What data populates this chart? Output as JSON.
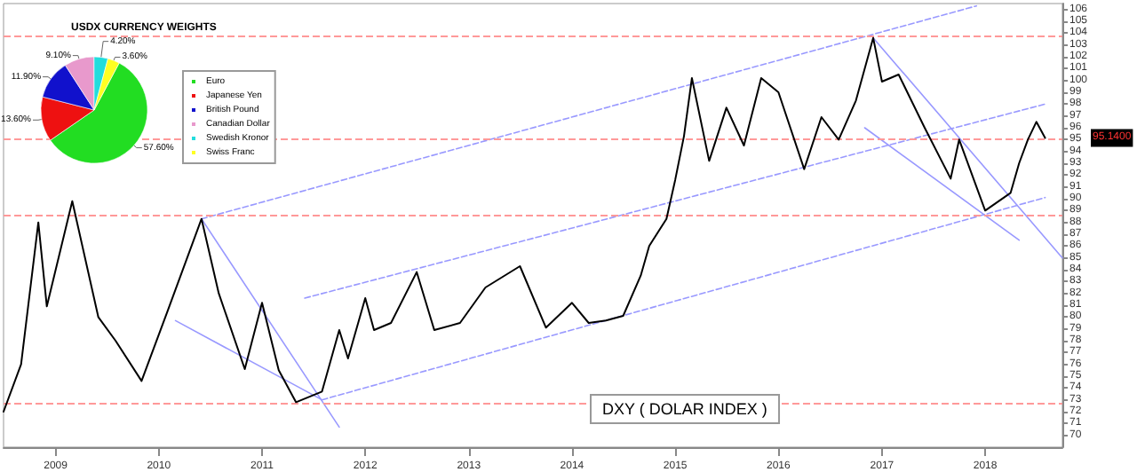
{
  "chart_data": [
    {
      "type": "pie",
      "title": "USDX CURRENCY WEIGHTS",
      "categories": [
        "Euro",
        "Japanese Yen",
        "British Pound",
        "Canadian Dollar",
        "Swedish Kronor",
        "Swiss Franc"
      ],
      "values": [
        57.6,
        13.6,
        11.9,
        9.1,
        4.2,
        3.6
      ],
      "colors": [
        "#22dd22",
        "#ee1111",
        "#1111cc",
        "#e899cc",
        "#22dddd",
        "#ffff22"
      ],
      "value_labels": [
        "57.60%",
        "13.60%",
        "11.90%",
        "9.10%",
        "4.20%",
        "3.60%"
      ],
      "legend": "right"
    },
    {
      "type": "line",
      "annotations": [
        "DXY ( DOLAR INDEX )",
        "95.1400"
      ],
      "xlim": [
        "2008-07",
        "2018-10"
      ],
      "xticks": [
        "2009",
        "2010",
        "2011",
        "2012",
        "2013",
        "2014",
        "2015",
        "2016",
        "2017",
        "2018"
      ],
      "ylim": [
        69,
        106.5
      ],
      "yticks": [
        70,
        71,
        72,
        73,
        74,
        75,
        76,
        77,
        78,
        79,
        80,
        81,
        82,
        83,
        84,
        85,
        86,
        87,
        88,
        89,
        90,
        91,
        92,
        93,
        94,
        95,
        96,
        97,
        98,
        99,
        100,
        101,
        102,
        103,
        104,
        105,
        106
      ],
      "marker": "none",
      "grid": false,
      "legend": false,
      "x": [
        "2008-07",
        "2008-09",
        "2008-11",
        "2008-12",
        "2009-03",
        "2009-06",
        "2009-08",
        "2009-11",
        "2010-02",
        "2010-06",
        "2010-08",
        "2010-11",
        "2011-01",
        "2011-03",
        "2011-05",
        "2011-08",
        "2011-10",
        "2011-11",
        "2012-01",
        "2012-02",
        "2012-04",
        "2012-07",
        "2012-09",
        "2012-12",
        "2013-03",
        "2013-07",
        "2013-10",
        "2014-01",
        "2014-03",
        "2014-05",
        "2014-07",
        "2014-09",
        "2014-10",
        "2014-12",
        "2015-01",
        "2015-02",
        "2015-03",
        "2015-05",
        "2015-07",
        "2015-09",
        "2015-11",
        "2016-01",
        "2016-04",
        "2016-06",
        "2016-08",
        "2016-10",
        "2016-12",
        "2017-01",
        "2017-03",
        "2017-06",
        "2017-09",
        "2017-10",
        "2018-01",
        "2018-04",
        "2018-05",
        "2018-06",
        "2018-07",
        "2018-08"
      ],
      "series": [
        {
          "color": "#000000",
          "line_style": "solid",
          "values": [
            72,
            76,
            88,
            80.9,
            89.8,
            80,
            78,
            74.6,
            80.5,
            88.3,
            82,
            75.6,
            81.2,
            75.5,
            72.8,
            73.7,
            78.9,
            76.5,
            81.6,
            78.9,
            79.5,
            83.8,
            78.9,
            79.5,
            82.5,
            84.3,
            79.1,
            81.2,
            79.5,
            79.7,
            80.1,
            83.5,
            86,
            88.3,
            91.6,
            95.3,
            100.2,
            93.2,
            97.7,
            94.5,
            100.2,
            99,
            92.5,
            96.9,
            95,
            98.3,
            103.6,
            99.9,
            100.5,
            96,
            91.7,
            95,
            89,
            90.5,
            93,
            95,
            96.5,
            95.14
          ]
        },
        {
          "color": "#9999ff",
          "line_style": "dashed",
          "x": [
            "2010-06",
            "2017-12"
          ],
          "values": [
            88.3,
            106.3
          ]
        },
        {
          "color": "#9999ff",
          "line_style": "dashed",
          "x": [
            "2011-06",
            "2018-08"
          ],
          "values": [
            81.6,
            98
          ]
        },
        {
          "color": "#9999ff",
          "line_style": "dashed",
          "x": [
            "2011-08",
            "2018-08"
          ],
          "values": [
            73,
            90.1
          ]
        },
        {
          "color": "#9999ff",
          "line_style": "solid",
          "x": [
            "2010-06",
            "2011-10"
          ],
          "values": [
            88.3,
            70.7
          ]
        },
        {
          "color": "#9999ff",
          "line_style": "solid",
          "x": [
            "2010-03",
            "2011-08"
          ],
          "values": [
            79.7,
            73
          ]
        },
        {
          "color": "#9999ff",
          "line_style": "solid",
          "x": [
            "2016-12",
            "2018-10"
          ],
          "values": [
            103.6,
            85
          ]
        },
        {
          "color": "#9999ff",
          "line_style": "solid",
          "x": [
            "2016-11",
            "2018-05"
          ],
          "values": [
            96,
            86.5
          ]
        }
      ],
      "ref_lines": [
        {
          "axis": "y",
          "value": 103.8,
          "color": "#ff9999",
          "line_style": "dashed"
        },
        {
          "axis": "y",
          "value": 88.6,
          "color": "#ff9999",
          "line_style": "dashed"
        },
        {
          "axis": "y",
          "value": 72.7,
          "color": "#ff9999",
          "line_style": "dashed"
        },
        {
          "axis": "y",
          "value": 95.1,
          "color": "#ff9999",
          "line_style": "dashed"
        }
      ]
    }
  ]
}
